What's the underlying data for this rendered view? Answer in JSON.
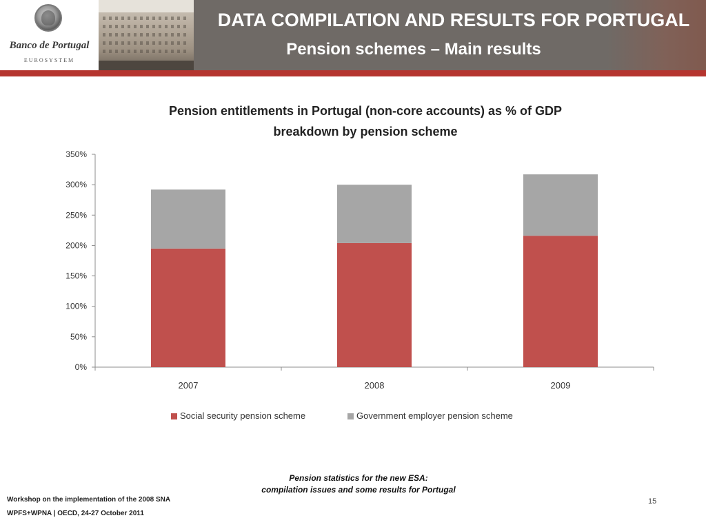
{
  "header": {
    "bank_name": "Banco de Portugal",
    "bank_sub": "EUROSYSTEM",
    "title": "DATA COMPILATION AND RESULTS FOR PORTUGAL",
    "subtitle": "Pension schemes – Main results"
  },
  "colors": {
    "header_bg": "#6f6a66",
    "accent_red": "#b5352f",
    "series_social": "#c0504d",
    "series_government": "#a6a6a6"
  },
  "chart_data": {
    "type": "bar",
    "stacked": true,
    "title_line1": "Pension entitlements in Portugal (non-core accounts) as % of GDP",
    "title_line2": "breakdown by pension scheme",
    "categories": [
      "2007",
      "2008",
      "2009"
    ],
    "series": [
      {
        "name": "Social security pension scheme",
        "values": [
          195,
          204,
          216
        ],
        "color": "#c0504d"
      },
      {
        "name": "Government employer pension scheme",
        "values": [
          97,
          96,
          101
        ],
        "color": "#a6a6a6"
      }
    ],
    "ylim": [
      0,
      350
    ],
    "yticks": [
      0,
      50,
      100,
      150,
      200,
      250,
      300,
      350
    ],
    "ytick_labels": [
      "0%",
      "50%",
      "100%",
      "150%",
      "200%",
      "250%",
      "300%",
      "350%"
    ],
    "xlabel": "",
    "ylabel": "",
    "grid": false,
    "legend_position": "bottom"
  },
  "footer": {
    "center_line1": "Pension statistics for the new ESA:",
    "center_line2": "compilation issues and some results for Portugal",
    "left_line1": "Workshop on the implementation of the 2008 SNA",
    "left_line2": "WPFS+WPNA | OECD,  24-27 October 2011",
    "page_number": "15"
  }
}
